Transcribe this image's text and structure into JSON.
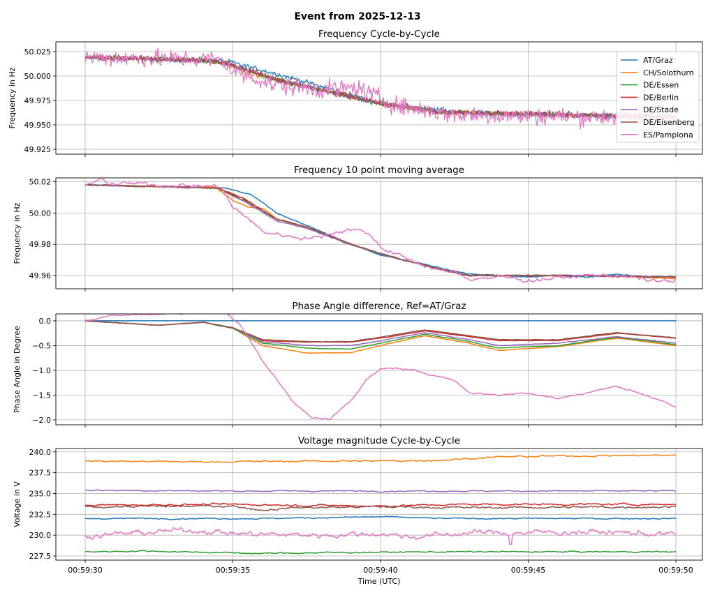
{
  "figure_title": "Event from 2025-12-13",
  "chart_data": [
    {
      "type": "line",
      "title": "Frequency Cycle-by-Cycle",
      "xlabel": "",
      "ylabel": "Frequency in Hz",
      "xlim": [
        0,
        20
      ],
      "ylim": [
        49.92,
        50.035
      ],
      "yticks": [
        49.925,
        49.95,
        49.975,
        50.0,
        50.025
      ],
      "ytick_labels": [
        "49.925",
        "49.950",
        "49.975",
        "50.000",
        "50.025"
      ],
      "grid": true,
      "legend": "top-right",
      "legend_entries": [
        "AT/Graz",
        "CH/Solothurn",
        "DE/Essen",
        "DE/Berlin",
        "DE/Stade",
        "DE/Eisenberg",
        "ES/Pamplona"
      ],
      "series": [
        {
          "name": "AT/Graz",
          "color": "#1f77b4",
          "noise": 0.0025,
          "x": [
            0,
            4,
            4.8,
            6.5,
            10,
            12,
            13,
            20
          ],
          "y": [
            50.019,
            50.016,
            50.015,
            50.002,
            49.972,
            49.965,
            49.962,
            49.958
          ]
        },
        {
          "name": "CH/Solothurn",
          "color": "#ff7f0e",
          "noise": 0.0025,
          "x": [
            0,
            4,
            4.8,
            5.5,
            6.5,
            10,
            12,
            20
          ],
          "y": [
            50.019,
            50.016,
            50.013,
            50.003,
            49.996,
            49.972,
            49.963,
            49.958
          ]
        },
        {
          "name": "DE/Essen",
          "color": "#2ca02c",
          "noise": 0.0025,
          "x": [
            0,
            4,
            4.8,
            6.5,
            10,
            12,
            20
          ],
          "y": [
            50.019,
            50.016,
            50.013,
            49.996,
            49.972,
            49.963,
            49.958
          ]
        },
        {
          "name": "DE/Berlin",
          "color": "#d62728",
          "noise": 0.0025,
          "x": [
            0,
            4,
            4.8,
            6.5,
            10,
            12,
            20
          ],
          "y": [
            50.019,
            50.016,
            50.013,
            49.996,
            49.972,
            49.963,
            49.958
          ]
        },
        {
          "name": "DE/Stade",
          "color": "#9467bd",
          "noise": 0.0025,
          "x": [
            0,
            4,
            4.8,
            6.5,
            10,
            12,
            20
          ],
          "y": [
            50.019,
            50.016,
            50.013,
            49.996,
            49.972,
            49.963,
            49.958
          ]
        },
        {
          "name": "DE/Eisenberg",
          "color": "#8c564b",
          "noise": 0.003,
          "x": [
            0,
            4,
            4.8,
            6.5,
            10,
            12,
            20
          ],
          "y": [
            50.019,
            50.016,
            50.013,
            49.996,
            49.972,
            49.963,
            49.958
          ]
        },
        {
          "name": "ES/Pamplona",
          "color": "#e377c2",
          "noise": 0.009,
          "x": [
            0,
            4.6,
            5.0,
            6.5,
            8.0,
            9.2,
            10.5,
            12.5,
            20
          ],
          "y": [
            50.019,
            50.017,
            50.005,
            49.99,
            49.986,
            49.988,
            49.97,
            49.96,
            49.957
          ]
        }
      ]
    },
    {
      "type": "line",
      "title": "Frequency 10 point moving average",
      "xlabel": "",
      "ylabel": "Frequency in Hz",
      "xlim": [
        0,
        20
      ],
      "ylim": [
        49.9515,
        50.0225
      ],
      "yticks": [
        49.96,
        49.98,
        50.0,
        50.02
      ],
      "ytick_labels": [
        "49.96",
        "49.98",
        "50.00",
        "50.02"
      ],
      "grid": true,
      "series": [
        {
          "name": "AT/Graz",
          "color": "#1f77b4",
          "noise": 0.0002,
          "x": [
            0,
            4.6,
            5.6,
            6.5,
            7.5,
            9,
            10,
            12,
            13,
            15,
            16,
            17,
            18,
            19,
            20
          ],
          "y": [
            50.018,
            50.0165,
            50.012,
            50.0,
            49.992,
            49.98,
            49.973,
            49.965,
            49.961,
            49.959,
            49.96,
            49.959,
            49.961,
            49.959,
            49.959
          ]
        },
        {
          "name": "CH/Solothurn",
          "color": "#ff7f0e",
          "noise": 0.0002,
          "x": [
            0,
            4.4,
            5.0,
            5.5,
            6.0,
            6.5,
            7.5,
            9,
            10,
            12,
            13,
            15,
            17,
            20
          ],
          "y": [
            50.018,
            50.0165,
            50.008,
            50.004,
            50.003,
            49.996,
            49.991,
            49.98,
            49.974,
            49.964,
            49.96,
            49.96,
            49.96,
            49.958
          ]
        },
        {
          "name": "DE/Essen",
          "color": "#2ca02c",
          "noise": 0.0002,
          "x": [
            0,
            4.5,
            5.4,
            6.5,
            7.5,
            9,
            10,
            12,
            13,
            15,
            17,
            20
          ],
          "y": [
            50.018,
            50.016,
            50.009,
            49.996,
            49.991,
            49.98,
            49.974,
            49.964,
            49.96,
            49.96,
            49.96,
            49.959
          ]
        },
        {
          "name": "DE/Berlin",
          "color": "#d62728",
          "noise": 0.0002,
          "x": [
            0,
            4.5,
            5.4,
            6.5,
            7.5,
            9,
            10,
            12,
            13,
            15,
            17,
            20
          ],
          "y": [
            50.018,
            50.016,
            50.009,
            49.996,
            49.991,
            49.98,
            49.974,
            49.964,
            49.96,
            49.96,
            49.96,
            49.959
          ]
        },
        {
          "name": "DE/Stade",
          "color": "#9467bd",
          "noise": 0.0002,
          "x": [
            0,
            4.5,
            5.4,
            6.5,
            7.5,
            9,
            10,
            12,
            13,
            15,
            17,
            20
          ],
          "y": [
            50.018,
            50.016,
            50.007,
            49.995,
            49.99,
            49.98,
            49.974,
            49.964,
            49.96,
            49.96,
            49.96,
            49.959
          ]
        },
        {
          "name": "DE/Eisenberg",
          "color": "#8c564b",
          "noise": 0.0003,
          "x": [
            0,
            4.5,
            5.4,
            6.5,
            7.5,
            9,
            10,
            12,
            13,
            15,
            17,
            20
          ],
          "y": [
            50.018,
            50.016,
            50.008,
            49.996,
            49.991,
            49.98,
            49.974,
            49.964,
            49.96,
            49.96,
            49.96,
            49.959
          ]
        },
        {
          "name": "ES/Pamplona",
          "color": "#e377c2",
          "noise": 0.0009,
          "x": [
            0,
            0.5,
            0.9,
            4.6,
            4.8,
            5.0,
            5.5,
            6.0,
            7.0,
            7.8,
            8.5,
            9.0,
            9.5,
            10.2,
            11,
            12,
            12.5,
            13,
            14,
            15,
            17,
            18,
            19,
            20
          ],
          "y": [
            50.018,
            50.021,
            50.019,
            50.017,
            50.01,
            50.003,
            49.997,
            49.988,
            49.985,
            49.984,
            49.988,
            49.99,
            49.988,
            49.976,
            49.97,
            49.963,
            49.962,
            49.958,
            49.959,
            49.957,
            49.96,
            49.96,
            49.957,
            49.956
          ]
        }
      ]
    },
    {
      "type": "line",
      "title": "Phase Angle difference, Ref=AT/Graz",
      "xlabel": "",
      "ylabel": "Phase Angle in Degree",
      "xlim": [
        0,
        20
      ],
      "ylim": [
        -2.1,
        0.14
      ],
      "yticks": [
        -2.0,
        -1.5,
        -1.0,
        -0.5,
        0.0
      ],
      "ytick_labels": [
        "−2.0",
        "−1.5",
        "−1.0",
        "−0.5",
        "0.0"
      ],
      "grid": true,
      "series": [
        {
          "name": "AT/Graz",
          "color": "#1f77b4",
          "noise": 0,
          "x": [
            0,
            20
          ],
          "y": [
            0,
            0
          ]
        },
        {
          "name": "CH/Solothurn",
          "color": "#ff7f0e",
          "noise": 0.003,
          "x": [
            0,
            2.5,
            4,
            5,
            6,
            7.5,
            9,
            10,
            11.5,
            13,
            14,
            16,
            18,
            20
          ],
          "y": [
            0,
            -0.09,
            -0.03,
            -0.15,
            -0.5,
            -0.65,
            -0.64,
            -0.5,
            -0.3,
            -0.45,
            -0.6,
            -0.52,
            -0.35,
            -0.5
          ]
        },
        {
          "name": "DE/Essen",
          "color": "#2ca02c",
          "noise": 0.003,
          "x": [
            0,
            2.5,
            4,
            5,
            6,
            7.5,
            9,
            10,
            11.5,
            13,
            14,
            16,
            18,
            20
          ],
          "y": [
            0,
            -0.09,
            -0.03,
            -0.15,
            -0.45,
            -0.55,
            -0.57,
            -0.45,
            -0.27,
            -0.42,
            -0.55,
            -0.5,
            -0.33,
            -0.48
          ]
        },
        {
          "name": "DE/Berlin",
          "color": "#d62728",
          "noise": 0.003,
          "x": [
            0,
            2.5,
            4,
            5,
            6,
            7.5,
            9,
            10,
            11.5,
            13,
            14,
            16,
            18,
            20
          ],
          "y": [
            0,
            -0.09,
            -0.03,
            -0.14,
            -0.4,
            -0.43,
            -0.43,
            -0.35,
            -0.2,
            -0.32,
            -0.4,
            -0.4,
            -0.25,
            -0.35
          ]
        },
        {
          "name": "DE/Stade",
          "color": "#9467bd",
          "noise": 0.003,
          "x": [
            0,
            2.5,
            4,
            5,
            6,
            7.5,
            9,
            10,
            11.5,
            13,
            14,
            16,
            18,
            20
          ],
          "y": [
            0,
            -0.09,
            -0.03,
            -0.14,
            -0.42,
            -0.5,
            -0.5,
            -0.4,
            -0.24,
            -0.38,
            -0.5,
            -0.45,
            -0.32,
            -0.45
          ]
        },
        {
          "name": "DE/Eisenberg",
          "color": "#8c564b",
          "noise": 0.003,
          "x": [
            0,
            2.5,
            4,
            5,
            6,
            7.5,
            9,
            10,
            11.5,
            13,
            14,
            16,
            18,
            20
          ],
          "y": [
            0,
            -0.09,
            -0.03,
            -0.14,
            -0.38,
            -0.42,
            -0.42,
            -0.33,
            -0.18,
            -0.3,
            -0.38,
            -0.38,
            -0.24,
            -0.34
          ]
        },
        {
          "name": "ES/Pamplona",
          "color": "#e377c2",
          "noise": 0.012,
          "x": [
            0,
            0.5,
            1.5,
            3,
            4,
            4.8,
            5.2,
            6,
            7,
            7.7,
            8.3,
            9,
            9.5,
            10,
            10.5,
            11.5,
            12.5,
            13,
            14,
            15,
            16,
            17,
            18,
            19,
            20
          ],
          "y": [
            0,
            0.08,
            0.12,
            0.15,
            0.17,
            0.15,
            -0.05,
            -0.8,
            -1.6,
            -1.97,
            -1.98,
            -1.6,
            -1.2,
            -0.98,
            -0.95,
            -1.05,
            -1.2,
            -1.45,
            -1.5,
            -1.45,
            -1.57,
            -1.45,
            -1.32,
            -1.5,
            -1.75
          ]
        }
      ]
    },
    {
      "type": "line",
      "title": "Voltage magnitude Cycle-by-Cycle",
      "xlabel": "Time (UTC)",
      "ylabel": "Voltage in V",
      "xlim": [
        0,
        20
      ],
      "ylim": [
        227.0,
        240.4
      ],
      "yticks": [
        227.5,
        230.0,
        232.5,
        235.0,
        237.5,
        240.0
      ],
      "ytick_labels": [
        "227.5",
        "230.0",
        "232.5",
        "235.0",
        "237.5",
        "240.0"
      ],
      "xticks": [
        0,
        5,
        10,
        15,
        20
      ],
      "xtick_labels": [
        "00:59:30",
        "00:59:35",
        "00:59:40",
        "00:59:45",
        "00:59:50"
      ],
      "grid": true,
      "series": [
        {
          "name": "AT/Graz",
          "color": "#1f77b4",
          "noise": 0.05,
          "x": [
            0,
            6,
            8,
            10,
            12,
            20
          ],
          "y": [
            232.0,
            232.0,
            232.1,
            232.2,
            232.0,
            232.0
          ]
        },
        {
          "name": "CH/Solothurn",
          "color": "#ff7f0e",
          "noise": 0.06,
          "x": [
            0,
            4,
            8,
            10,
            12,
            14,
            16,
            20
          ],
          "y": [
            238.9,
            238.8,
            238.9,
            238.9,
            239.0,
            239.4,
            239.5,
            239.6
          ]
        },
        {
          "name": "DE/Essen",
          "color": "#2ca02c",
          "noise": 0.05,
          "x": [
            0,
            2,
            6,
            8,
            12,
            20
          ],
          "y": [
            228.0,
            228.1,
            227.8,
            227.9,
            228.0,
            228.0
          ]
        },
        {
          "name": "DE/Berlin",
          "color": "#d62728",
          "noise": 0.07,
          "x": [
            0,
            5,
            7,
            10,
            13,
            20
          ],
          "y": [
            233.6,
            233.7,
            233.6,
            233.5,
            233.7,
            233.7
          ]
        },
        {
          "name": "DE/Stade",
          "color": "#9467bd",
          "noise": 0.05,
          "x": [
            0,
            5,
            10,
            15,
            20
          ],
          "y": [
            235.4,
            235.3,
            235.3,
            235.3,
            235.3
          ]
        },
        {
          "name": "DE/Eisenberg",
          "color": "#8c564b",
          "noise": 0.08,
          "x": [
            0,
            5,
            6,
            7,
            10,
            13,
            20
          ],
          "y": [
            233.4,
            233.5,
            233.0,
            233.3,
            233.4,
            233.3,
            233.4
          ]
        },
        {
          "name": "ES/Pamplona",
          "color": "#e377c2",
          "noise": 0.22,
          "x": [
            0,
            3,
            4,
            5,
            6,
            8,
            10,
            11,
            12,
            13,
            15,
            17,
            20
          ],
          "y": [
            229.9,
            230.5,
            230.6,
            230.2,
            230.1,
            230.0,
            230.2,
            229.8,
            230.0,
            230.3,
            230.3,
            230.4,
            230.1
          ]
        }
      ]
    }
  ]
}
